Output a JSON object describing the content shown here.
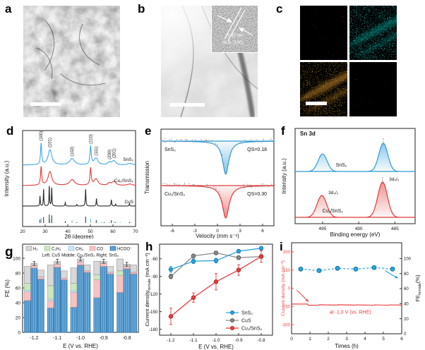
{
  "figure": {
    "panels": {
      "a": {
        "label": "a",
        "type": "SEM image",
        "has_scale_bar": true
      },
      "b": {
        "label": "b",
        "type": "TEM image",
        "has_scale_bar": true,
        "inset": {
          "line1": "0.32 nm",
          "line2": "SnS₂ (100)"
        }
      },
      "c": {
        "label": "c",
        "type": "EDS elemental maps",
        "has_scale_bar": true,
        "maps": [
          {
            "element": "Cu",
            "map_color": "#c93ec9",
            "label_color": "#f0bef0"
          },
          {
            "element": "Sn",
            "map_color": "#18c2b8",
            "label_color": "#9ff0e8"
          },
          {
            "element": "S",
            "map_color": "#f08518",
            "label_color": "#ffffff"
          },
          {
            "element": "O",
            "map_color": "#b2b232",
            "label_color": "#e8e89e"
          }
        ]
      },
      "d": {
        "label": "d"
      },
      "e": {
        "label": "e"
      },
      "f": {
        "label": "f"
      },
      "g": {
        "label": "g"
      },
      "h": {
        "label": "h"
      },
      "i": {
        "label": "i"
      }
    }
  },
  "chart_data": [
    {
      "panel": "d",
      "type": "line",
      "xlabel": "2θ (degree)",
      "ylabel": "Intensity (a.u.)",
      "xlim": [
        20,
        70
      ],
      "xticks": [
        20,
        30,
        40,
        50,
        60,
        70
      ],
      "peak_labels": [
        {
          "text": "(100)",
          "two_theta": 28.2
        },
        {
          "text": "(101)",
          "two_theta": 32.1
        },
        {
          "text": "(102)",
          "two_theta": 41.9
        },
        {
          "text": "(110)",
          "two_theta": 50.1
        },
        {
          "text": "(111)",
          "two_theta": 52.5
        },
        {
          "text": "(200)",
          "two_theta": 58.4
        },
        {
          "text": "(201)",
          "two_theta": 60.4
        }
      ],
      "series": [
        {
          "name": "SnS₂",
          "color": "#45a5dd",
          "peaks": [
            [
              28.2,
              1.0,
              0.3
            ],
            [
              32.1,
              0.72,
              1.0
            ],
            [
              41.9,
              0.3,
              1.3
            ],
            [
              50.1,
              0.85,
              0.35
            ],
            [
              52.5,
              0.32,
              1.0
            ],
            [
              58.4,
              0.12,
              0.7
            ],
            [
              60.4,
              0.2,
              1.0
            ],
            [
              67.5,
              0.08,
              1.2
            ]
          ]
        },
        {
          "name": "Cu₁/SnS₂",
          "color": "#e23b3b",
          "peaks": [
            [
              28.2,
              1.0,
              0.3
            ],
            [
              32.1,
              0.75,
              1.0
            ],
            [
              41.9,
              0.32,
              1.3
            ],
            [
              50.1,
              0.9,
              0.35
            ],
            [
              52.5,
              0.35,
              1.0
            ],
            [
              58.4,
              0.12,
              0.7
            ],
            [
              60.4,
              0.22,
              1.0
            ],
            [
              67.5,
              0.08,
              1.2
            ]
          ]
        },
        {
          "name": "CuS",
          "color": "#2b2b2b",
          "peaks": [
            [
              27.7,
              0.5,
              0.14
            ],
            [
              29.3,
              0.85,
              0.14
            ],
            [
              31.8,
              1.0,
              0.14
            ],
            [
              32.9,
              0.92,
              0.14
            ],
            [
              38.9,
              0.18,
              0.14
            ],
            [
              44.0,
              0.08,
              0.14
            ],
            [
              47.9,
              0.85,
              0.16
            ],
            [
              52.7,
              0.38,
              0.15
            ],
            [
              59.3,
              0.32,
              0.16
            ],
            [
              61.2,
              0.1,
              0.15
            ],
            [
              67.3,
              0.12,
              0.15
            ]
          ]
        }
      ],
      "reference_sticks": {
        "CuS": [
          [
            27.7,
            0.4
          ],
          [
            29.3,
            0.7
          ],
          [
            31.8,
            1.0
          ],
          [
            32.9,
            0.9
          ],
          [
            38.9,
            0.2
          ],
          [
            44.0,
            0.1
          ],
          [
            47.9,
            0.75
          ],
          [
            52.7,
            0.35
          ],
          [
            56.1,
            0.1
          ],
          [
            59.3,
            0.35
          ],
          [
            61.2,
            0.1
          ],
          [
            67.3,
            0.12
          ]
        ],
        "SnS₂": [
          [
            28.2,
            0.6
          ],
          [
            32.1,
            0.45
          ],
          [
            41.9,
            0.3
          ],
          [
            50.1,
            0.5
          ],
          [
            52.5,
            0.3
          ],
          [
            55.0,
            0.1
          ],
          [
            58.4,
            0.12
          ],
          [
            60.4,
            0.18
          ],
          [
            63.2,
            0.1
          ],
          [
            68.0,
            0.1
          ]
        ],
        "stick_colors": {
          "CuS": "#2b2b2b",
          "SnS₂": "#5ab0dd"
        }
      }
    },
    {
      "panel": "e",
      "type": "line",
      "xlabel": "Velocity (mm s⁻¹)",
      "ylabel": "Transmission",
      "xlim": [
        -7.5,
        7.5
      ],
      "xticks": [
        -6,
        -3,
        0,
        3,
        6
      ],
      "series": [
        {
          "name": "SnS₂",
          "annotation": "QS=0.18",
          "color": "#2f9ad6",
          "dip_center": 1.1,
          "dip_width": 0.5
        },
        {
          "name": "Cu₁/SnS₂",
          "annotation": "QS=0.30",
          "color": "#e23b3b",
          "dip_center": 1.1,
          "dip_width": 0.55
        }
      ]
    },
    {
      "panel": "f",
      "type": "line",
      "title": "Sn 3d",
      "xlabel": "Binding energy (eV)",
      "ylabel": "Intensity (a.u.)",
      "xlim": [
        498.8,
        482.2
      ],
      "x_reversed": true,
      "xticks": [
        495,
        490,
        485
      ],
      "peak_annotations": [
        "3d₃/₂",
        "3d₅/₂"
      ],
      "series": [
        {
          "name": "SnS₂",
          "color": "#2f9ad6",
          "peaks": [
            [
              495.0,
              0.62,
              0.62
            ],
            [
              486.6,
              1.0,
              0.62
            ]
          ]
        },
        {
          "name": "Cu₁/SnS₂",
          "color": "#e23b3b",
          "peaks": [
            [
              495.1,
              0.62,
              0.66
            ],
            [
              486.7,
              1.0,
              0.66
            ]
          ]
        }
      ]
    },
    {
      "panel": "g",
      "type": "stacked-bar",
      "xlabel": "E (V vs. RHE)",
      "ylabel": "FE (%)",
      "ylim": [
        0,
        100
      ],
      "yticks": [
        0,
        20,
        40,
        60,
        80,
        100
      ],
      "categories": [
        "-1.2",
        "-1.1",
        "-1.0",
        "-0.9",
        "-0.8"
      ],
      "legend": [
        {
          "name": "H₂",
          "fill": "#d8d8d8",
          "stroke": "#8f8f8f"
        },
        {
          "name": "C₂H₄",
          "fill": "#cfe5c2",
          "stroke": "#8fbc7d"
        },
        {
          "name": "CH₄",
          "fill": "#cfe6f7",
          "stroke": "#7fb2d9"
        },
        {
          "name": "CO",
          "fill": "#f6c3c3",
          "stroke": "#d98f8f"
        },
        {
          "name": "HCOO⁻",
          "fill": "#4c92c8",
          "stroke": "#2c6da0"
        }
      ],
      "note": "Left: CuS   Middle: Cu₁/SnS₂   Right: SnS₂",
      "catalyst_order": [
        "CuS",
        "Cu₁/SnS₂",
        "SnS₂"
      ],
      "stack_order_bottom_to_top": [
        "HCOO⁻",
        "CO",
        "CH₄",
        "C₂H₄",
        "H₂"
      ],
      "bars": {
        "CuS": [
          [
            43,
            12,
            2,
            9,
            23
          ],
          [
            33,
            10,
            2,
            18,
            28
          ],
          [
            34,
            20,
            2,
            10,
            21
          ],
          [
            47,
            24,
            0,
            7,
            18
          ],
          [
            54,
            23,
            0,
            6,
            16
          ]
        ],
        "Cu₁/SnS₂": [
          [
            87,
            3,
            0,
            0,
            3
          ],
          [
            88,
            4,
            0,
            0,
            4
          ],
          [
            91,
            4,
            0,
            0,
            4
          ],
          [
            89,
            4,
            0,
            0,
            3
          ],
          [
            86,
            3,
            0,
            0,
            3
          ]
        ],
        "SnS₂": [
          [
            72,
            3,
            0,
            0,
            9
          ],
          [
            71,
            2,
            0,
            0,
            10
          ],
          [
            81,
            2,
            0,
            0,
            8
          ],
          [
            79,
            2,
            0,
            0,
            8
          ],
          [
            79,
            2,
            0,
            0,
            10
          ]
        ]
      },
      "error_bar": {
        "on": "Cu₁/SnS₂",
        "value": 2.5
      }
    },
    {
      "panel": "h",
      "type": "line",
      "xlabel": "E (V vs. RHE)",
      "ylabel_parts": {
        "pre": "Current density",
        "sub": "formate",
        "post": " (mA cm⁻²)"
      },
      "x": [
        -1.2,
        -1.1,
        -1.0,
        -0.9,
        -0.8
      ],
      "xticks": [
        "-1.2",
        "-1.1",
        "-1.0",
        "-0.9",
        "-0.8"
      ],
      "ylim": [
        -185,
        -35
      ],
      "yticks": [
        -60,
        -90,
        -120,
        -150,
        -180
      ],
      "series": [
        {
          "name": "SnS₂",
          "color": "#29a3dc",
          "edge": "#1a6fa0",
          "values": [
            -78,
            -64,
            -63,
            -47,
            -42
          ],
          "errors": [
            5,
            4,
            4,
            3,
            3
          ]
        },
        {
          "name": "CuS",
          "color": "#8a8a8a",
          "edge": "#4a4a4a",
          "values": [
            -90,
            -55,
            -50,
            -58,
            -56
          ],
          "errors": [
            4,
            3,
            3,
            3,
            3
          ]
        },
        {
          "name": "Cu₁/SnS₂",
          "color": "#e8393c",
          "edge": "#a32325",
          "values": [
            -158,
            -126,
            -99,
            -79,
            -56
          ],
          "errors": [
            14,
            8,
            14,
            9,
            10
          ]
        }
      ],
      "legend_position": "bottom-right"
    },
    {
      "panel": "i",
      "type": "dual-axis-line",
      "xlabel": "Times (h)",
      "ylabel_left": "Current density (mA cm⁻²)",
      "ylabel_right_parts": {
        "pre": "FE",
        "sub": "formate",
        "post": "(%)"
      },
      "xlim": [
        0,
        6
      ],
      "xticks": [
        0,
        1,
        2,
        3,
        4,
        5,
        6
      ],
      "ylim_left": [
        -375,
        375
      ],
      "yticks_left": [
        300,
        150,
        0,
        -150,
        -300
      ],
      "ylim_right": [
        0,
        121
      ],
      "yticks_right": [
        0,
        20,
        40,
        60,
        80,
        100
      ],
      "annotation": "at -1.0 V (vs. RHE)",
      "annotation_color": "#e8393c",
      "current_series": {
        "name": "Current density",
        "color": "#ef4545",
        "points": [
          [
            0,
            -130
          ],
          [
            0.88,
            -130
          ],
          [
            0.93,
            -141
          ],
          [
            1.48,
            -139
          ],
          [
            1.52,
            -136
          ],
          [
            2.48,
            -139
          ],
          [
            2.52,
            -136
          ],
          [
            3.48,
            -139
          ],
          [
            3.52,
            -137
          ],
          [
            4.48,
            -140
          ],
          [
            4.52,
            -137
          ],
          [
            5.28,
            -140
          ],
          [
            5.32,
            -137
          ],
          [
            6,
            -139
          ]
        ]
      },
      "fe_series": {
        "name": "FE formate",
        "color": "#29a3dc",
        "edge": "#156e9e",
        "x": [
          0.5,
          1.5,
          2.5,
          3.5,
          4.5,
          5.5
        ],
        "values": [
          86,
          84,
          87,
          86,
          88,
          86
        ]
      }
    }
  ]
}
